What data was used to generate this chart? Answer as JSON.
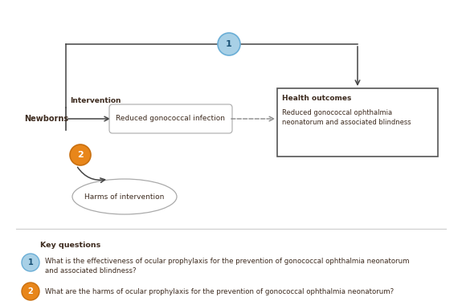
{
  "bg_color": "#ffffff",
  "fig_width": 5.75,
  "fig_height": 3.75,
  "dpi": 100,
  "newborns_label": "Newborns",
  "intervention_label": "Intervention",
  "rounded_box_label": "Reduced gonococcal infection",
  "health_outcomes_title": "Health outcomes",
  "health_outcomes_body": "Reduced gonococcal ophthalmia\nneonatorum and associated blindness",
  "circle1_label": "1",
  "circle1_color": "#a8d0e6",
  "circle1_border": "#6aaed6",
  "circle2_label": "2",
  "circle2_color": "#e8861a",
  "circle2_border": "#c97010",
  "ellipse_label": "Harms of intervention",
  "key_questions_title": "Key questions",
  "kq1_label": "1",
  "kq1_color": "#a8d0e6",
  "kq1_border": "#6aaed6",
  "kq1_text_line1": "What is the effectiveness of ocular prophylaxis for the prevention of gonococcal ophthalmia neonatorum",
  "kq1_text_line2": "and associated blindness?",
  "kq2_label": "2",
  "kq2_color": "#e8861a",
  "kq2_border": "#c97010",
  "kq2_text": "What are the harms of ocular prophylaxis for the prevention of gonococcal ophthalmia neonatorum?",
  "text_color": "#3d2b1f",
  "arrow_color": "#444444",
  "dash_color": "#888888"
}
